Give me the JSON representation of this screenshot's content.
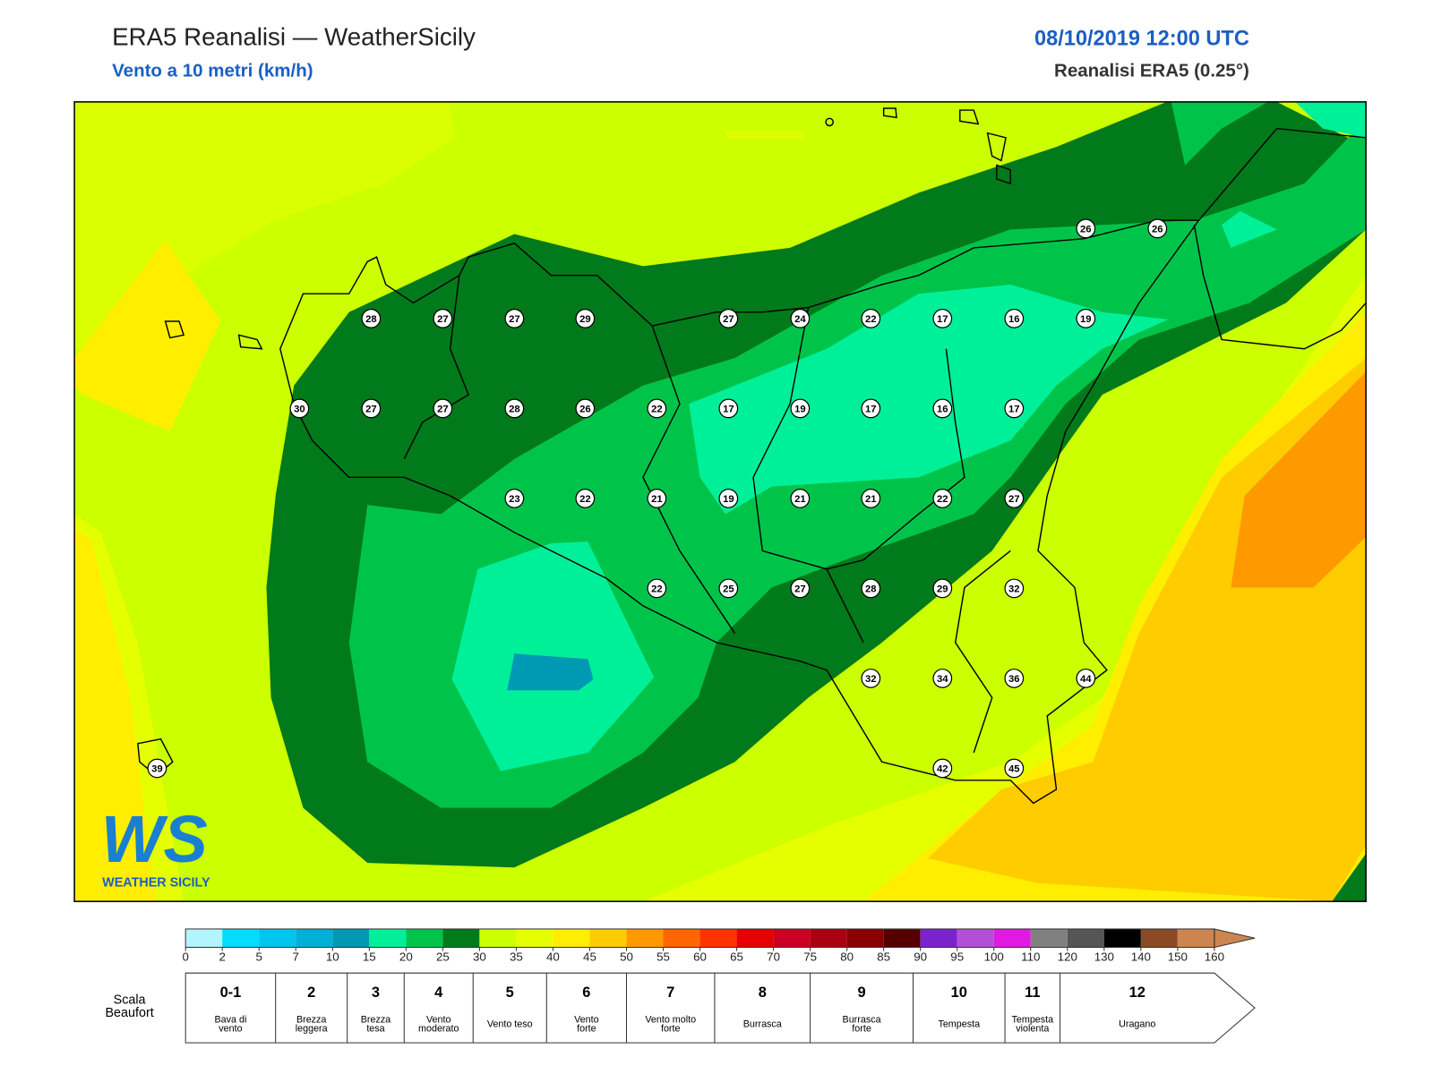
{
  "header": {
    "title": "ERA5 Reanalisi — WeatherSicily",
    "subtitle": "Vento a 10 metri (km/h)",
    "datetime": "08/10/2019 12:00 UTC",
    "model": "Reanalisi ERA5 (0.25°)"
  },
  "logo": {
    "mark": "WS",
    "name": "WEATHER SICILY"
  },
  "map": {
    "stations": [
      28,
      27,
      27,
      29,
      27,
      24,
      22,
      17,
      16,
      19,
      30,
      27,
      27,
      28,
      26,
      22,
      17,
      19,
      17,
      16,
      17,
      23,
      22,
      21,
      19,
      21,
      21,
      22,
      27,
      22,
      25,
      27,
      28,
      29,
      32,
      32,
      34,
      36,
      44,
      42,
      45,
      26,
      26,
      39
    ],
    "colorbar": {
      "ticks": [
        0,
        2,
        5,
        7,
        10,
        15,
        20,
        25,
        30,
        35,
        40,
        45,
        50,
        55,
        60,
        65,
        70,
        75,
        80,
        85,
        90,
        95,
        100,
        110,
        120,
        130,
        140,
        150,
        160
      ],
      "colors": [
        "#b3f5ff",
        "#00ddff",
        "#00c5ee",
        "#00b0d6",
        "#0099b3",
        "#00f09a",
        "#00c44a",
        "#007a1a",
        "#ccff00",
        "#e5ff00",
        "#ffee00",
        "#ffcc00",
        "#ff9900",
        "#ff6600",
        "#ff3300",
        "#e60000",
        "#cc0022",
        "#aa0011",
        "#880000",
        "#550000",
        "#7a22cc",
        "#b34fd6",
        "#e01ae0",
        "#808080",
        "#555555",
        "#000000",
        "#8a4a26",
        "#cd8550"
      ]
    },
    "beaufort": {
      "label": [
        "Scala",
        "Beaufort"
      ],
      "levels": [
        {
          "force": "0-1",
          "name": [
            "Bava di",
            "vento"
          ]
        },
        {
          "force": "2",
          "name": [
            "Brezza",
            "leggera"
          ]
        },
        {
          "force": "3",
          "name": [
            "Brezza",
            "tesa"
          ]
        },
        {
          "force": "4",
          "name": [
            "Vento",
            "moderato"
          ]
        },
        {
          "force": "5",
          "name": [
            "Vento teso"
          ]
        },
        {
          "force": "6",
          "name": [
            "Vento",
            "forte"
          ]
        },
        {
          "force": "7",
          "name": [
            "Vento molto",
            "forte"
          ]
        },
        {
          "force": "8",
          "name": [
            "Burrasca"
          ]
        },
        {
          "force": "9",
          "name": [
            "Burrasca",
            "forte"
          ]
        },
        {
          "force": "10",
          "name": [
            "Tempesta"
          ]
        },
        {
          "force": "11",
          "name": [
            "Tempesta",
            "violenta"
          ]
        },
        {
          "force": "12",
          "name": [
            "Uragano"
          ]
        }
      ]
    }
  }
}
